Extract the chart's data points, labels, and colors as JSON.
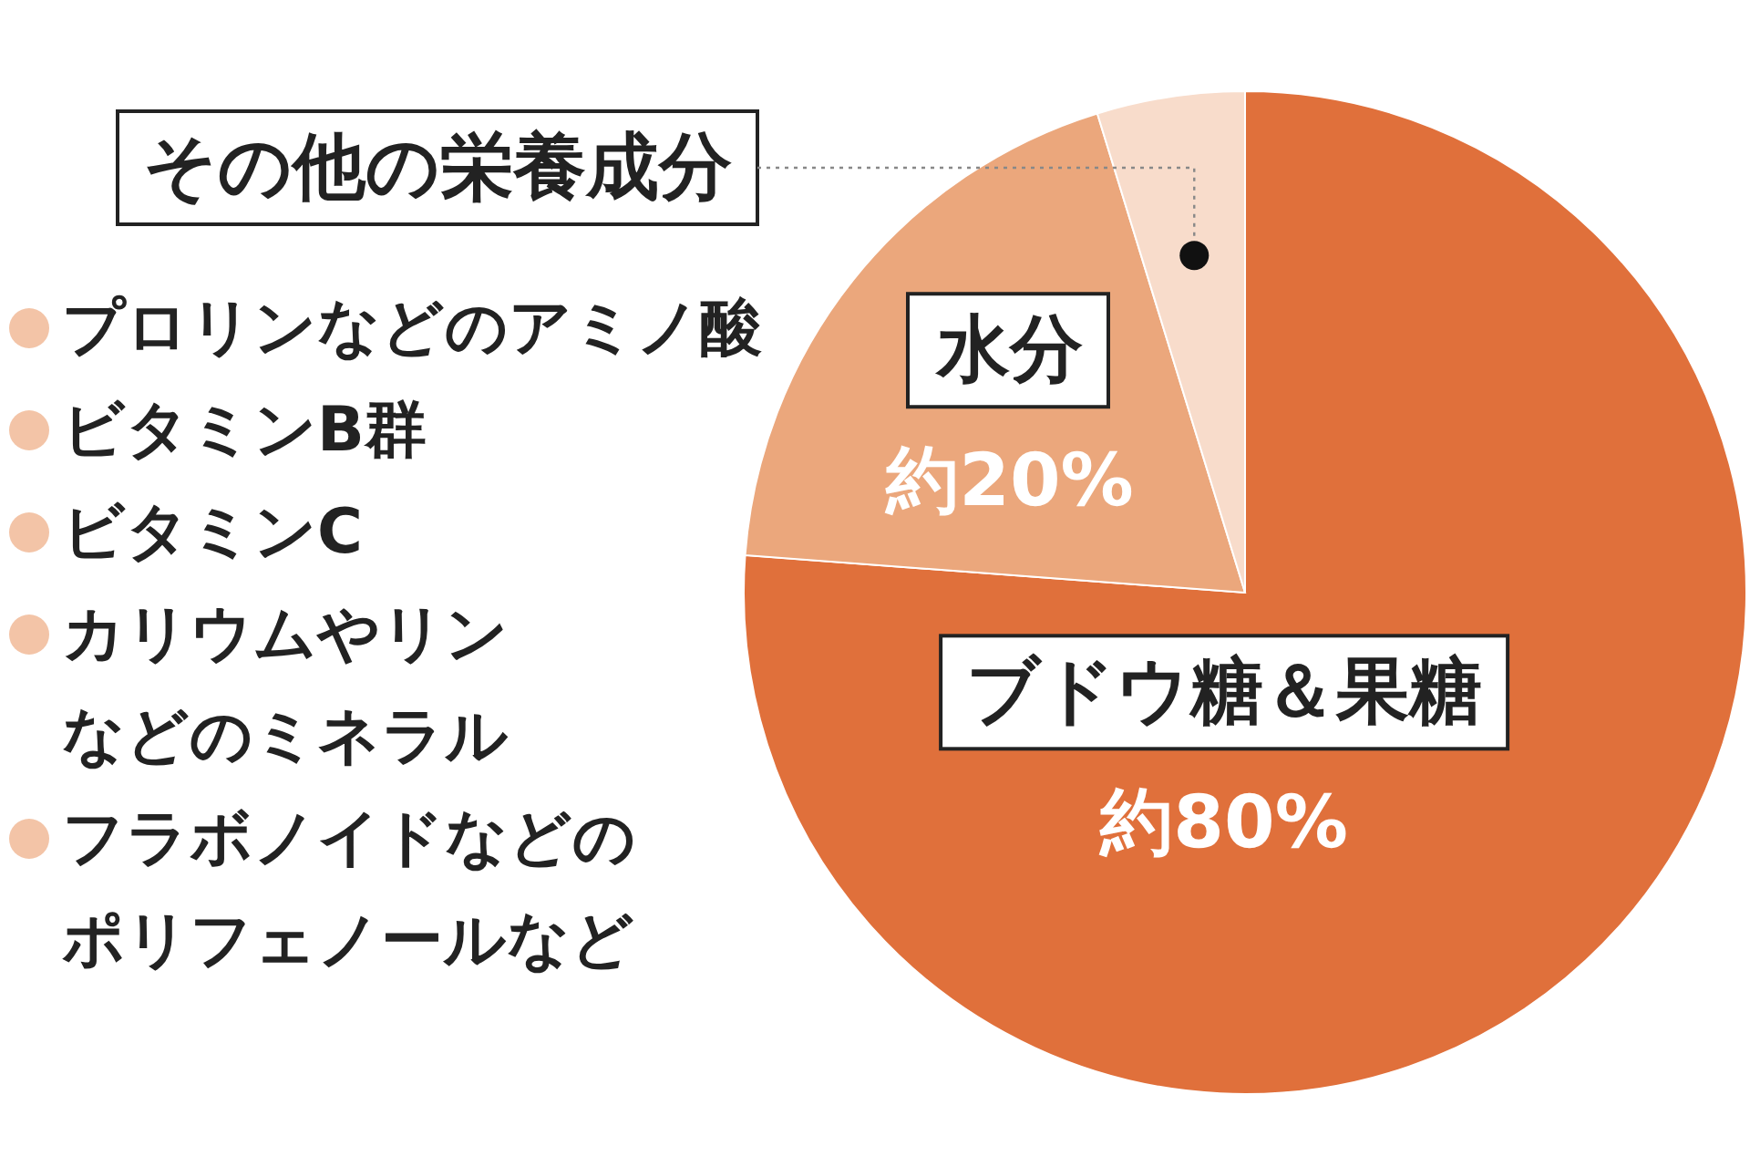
{
  "chart_data": {
    "type": "pie",
    "categories": [
      "ブドウ糖＆果糖",
      "水分",
      "その他の栄養成分"
    ],
    "values": [
      80,
      20,
      5
    ],
    "colors": [
      "#e0703b",
      "#eba77c",
      "#f8dccb"
    ],
    "value_labels": [
      "約80%",
      "約20%",
      null
    ],
    "annotations": [
      "プロリンなどのアミノ酸",
      "ビタミンB群",
      "ビタミンC",
      "カリウムやリンなどのミネラル",
      "フラボノイドなどのポリフェノールなど"
    ]
  }
}
